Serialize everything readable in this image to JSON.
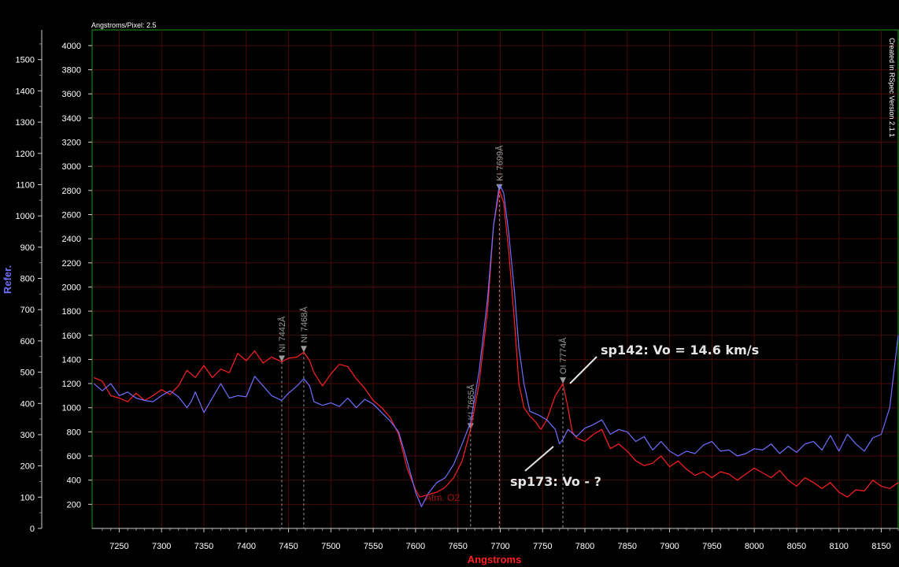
{
  "chart_data": {
    "type": "line",
    "header_left": "Angstroms/Pixel: 2.5",
    "watermark": "Created in RSpec Version 2.1.1",
    "xlabel": "Angstroms",
    "ylabel_left": "Refer.",
    "ylabel_right": "",
    "xlim": [
      7218,
      8170
    ],
    "ylim_right": [
      0,
      4130
    ],
    "ylim_left": [
      0,
      1595
    ],
    "x_ticks": [
      "7250",
      "7300",
      "7350",
      "7400",
      "7450",
      "7500",
      "7550",
      "7600",
      "7650",
      "7700",
      "7750",
      "7800",
      "7850",
      "7900",
      "7950",
      "8000",
      "8050",
      "8100",
      "8150"
    ],
    "y_ticks_right": [
      "200",
      "400",
      "600",
      "800",
      "1000",
      "1200",
      "1400",
      "1600",
      "1800",
      "2000",
      "2200",
      "2400",
      "2600",
      "2800",
      "3000",
      "3200",
      "3400",
      "3600",
      "3800",
      "4000"
    ],
    "y_ticks_left": [
      "0",
      "100",
      "200",
      "300",
      "400",
      "500",
      "600",
      "700",
      "800",
      "900",
      "1000",
      "1100",
      "1200",
      "1300",
      "1400",
      "1500"
    ],
    "grid": true,
    "series": [
      {
        "name": "",
        "color": "#ff2020",
        "points": [
          [
            7220,
            1250
          ],
          [
            7230,
            1220
          ],
          [
            7240,
            1100
          ],
          [
            7250,
            1080
          ],
          [
            7260,
            1050
          ],
          [
            7270,
            1120
          ],
          [
            7280,
            1060
          ],
          [
            7290,
            1100
          ],
          [
            7300,
            1150
          ],
          [
            7310,
            1110
          ],
          [
            7320,
            1180
          ],
          [
            7330,
            1310
          ],
          [
            7340,
            1250
          ],
          [
            7350,
            1350
          ],
          [
            7360,
            1250
          ],
          [
            7370,
            1320
          ],
          [
            7380,
            1290
          ],
          [
            7390,
            1450
          ],
          [
            7400,
            1390
          ],
          [
            7410,
            1470
          ],
          [
            7420,
            1370
          ],
          [
            7430,
            1420
          ],
          [
            7442,
            1380
          ],
          [
            7450,
            1410
          ],
          [
            7460,
            1420
          ],
          [
            7468,
            1460
          ],
          [
            7475,
            1390
          ],
          [
            7480,
            1290
          ],
          [
            7490,
            1180
          ],
          [
            7500,
            1280
          ],
          [
            7510,
            1360
          ],
          [
            7520,
            1340
          ],
          [
            7530,
            1240
          ],
          [
            7540,
            1160
          ],
          [
            7550,
            1060
          ],
          [
            7560,
            1000
          ],
          [
            7570,
            920
          ],
          [
            7580,
            780
          ],
          [
            7590,
            500
          ],
          [
            7600,
            320
          ],
          [
            7605,
            260
          ],
          [
            7615,
            280
          ],
          [
            7625,
            300
          ],
          [
            7635,
            340
          ],
          [
            7645,
            420
          ],
          [
            7655,
            560
          ],
          [
            7665,
            820
          ],
          [
            7675,
            1200
          ],
          [
            7685,
            1800
          ],
          [
            7692,
            2500
          ],
          [
            7699,
            2800
          ],
          [
            7704,
            2700
          ],
          [
            7710,
            2300
          ],
          [
            7717,
            1700
          ],
          [
            7722,
            1200
          ],
          [
            7728,
            1000
          ],
          [
            7735,
            930
          ],
          [
            7742,
            880
          ],
          [
            7748,
            820
          ],
          [
            7755,
            900
          ],
          [
            7765,
            1100
          ],
          [
            7774,
            1200
          ],
          [
            7780,
            1000
          ],
          [
            7785,
            800
          ],
          [
            7790,
            750
          ],
          [
            7800,
            720
          ],
          [
            7810,
            780
          ],
          [
            7820,
            820
          ],
          [
            7830,
            660
          ],
          [
            7840,
            700
          ],
          [
            7850,
            640
          ],
          [
            7860,
            560
          ],
          [
            7870,
            520
          ],
          [
            7880,
            540
          ],
          [
            7890,
            600
          ],
          [
            7900,
            510
          ],
          [
            7910,
            560
          ],
          [
            7920,
            490
          ],
          [
            7930,
            440
          ],
          [
            7940,
            470
          ],
          [
            7950,
            420
          ],
          [
            7960,
            470
          ],
          [
            7970,
            450
          ],
          [
            7980,
            400
          ],
          [
            7990,
            450
          ],
          [
            8000,
            500
          ],
          [
            8010,
            460
          ],
          [
            8020,
            420
          ],
          [
            8030,
            480
          ],
          [
            8040,
            400
          ],
          [
            8050,
            350
          ],
          [
            8060,
            420
          ],
          [
            8070,
            380
          ],
          [
            8080,
            330
          ],
          [
            8090,
            380
          ],
          [
            8100,
            300
          ],
          [
            8110,
            260
          ],
          [
            8120,
            320
          ],
          [
            8130,
            310
          ],
          [
            8140,
            400
          ],
          [
            8150,
            350
          ],
          [
            8160,
            330
          ],
          [
            8170,
            380
          ]
        ]
      },
      {
        "name": "",
        "color": "#6f6fff",
        "points": [
          [
            7220,
            1200
          ],
          [
            7230,
            1140
          ],
          [
            7240,
            1200
          ],
          [
            7250,
            1100
          ],
          [
            7260,
            1130
          ],
          [
            7270,
            1080
          ],
          [
            7280,
            1060
          ],
          [
            7290,
            1050
          ],
          [
            7300,
            1100
          ],
          [
            7310,
            1140
          ],
          [
            7320,
            1090
          ],
          [
            7330,
            1000
          ],
          [
            7335,
            1050
          ],
          [
            7340,
            1130
          ],
          [
            7350,
            960
          ],
          [
            7360,
            1080
          ],
          [
            7370,
            1200
          ],
          [
            7380,
            1080
          ],
          [
            7390,
            1100
          ],
          [
            7400,
            1090
          ],
          [
            7410,
            1260
          ],
          [
            7420,
            1180
          ],
          [
            7430,
            1100
          ],
          [
            7442,
            1060
          ],
          [
            7450,
            1120
          ],
          [
            7460,
            1180
          ],
          [
            7468,
            1240
          ],
          [
            7475,
            1180
          ],
          [
            7480,
            1050
          ],
          [
            7490,
            1020
          ],
          [
            7500,
            1040
          ],
          [
            7510,
            1010
          ],
          [
            7520,
            1080
          ],
          [
            7530,
            1000
          ],
          [
            7540,
            1070
          ],
          [
            7550,
            1030
          ],
          [
            7560,
            960
          ],
          [
            7570,
            890
          ],
          [
            7580,
            800
          ],
          [
            7590,
            560
          ],
          [
            7600,
            300
          ],
          [
            7607,
            180
          ],
          [
            7615,
            290
          ],
          [
            7625,
            380
          ],
          [
            7635,
            420
          ],
          [
            7645,
            530
          ],
          [
            7655,
            700
          ],
          [
            7665,
            880
          ],
          [
            7675,
            1300
          ],
          [
            7685,
            1900
          ],
          [
            7692,
            2500
          ],
          [
            7699,
            2850
          ],
          [
            7704,
            2780
          ],
          [
            7710,
            2450
          ],
          [
            7717,
            1950
          ],
          [
            7722,
            1500
          ],
          [
            7728,
            1200
          ],
          [
            7735,
            970
          ],
          [
            7745,
            940
          ],
          [
            7755,
            900
          ],
          [
            7765,
            820
          ],
          [
            7770,
            700
          ],
          [
            7774,
            740
          ],
          [
            7780,
            820
          ],
          [
            7790,
            760
          ],
          [
            7800,
            830
          ],
          [
            7810,
            860
          ],
          [
            7820,
            900
          ],
          [
            7830,
            780
          ],
          [
            7840,
            820
          ],
          [
            7850,
            800
          ],
          [
            7860,
            720
          ],
          [
            7870,
            760
          ],
          [
            7880,
            650
          ],
          [
            7890,
            720
          ],
          [
            7900,
            640
          ],
          [
            7910,
            600
          ],
          [
            7920,
            640
          ],
          [
            7930,
            620
          ],
          [
            7940,
            690
          ],
          [
            7950,
            720
          ],
          [
            7960,
            640
          ],
          [
            7970,
            650
          ],
          [
            7980,
            600
          ],
          [
            7990,
            620
          ],
          [
            8000,
            660
          ],
          [
            8010,
            650
          ],
          [
            8020,
            700
          ],
          [
            8030,
            620
          ],
          [
            8040,
            680
          ],
          [
            8050,
            630
          ],
          [
            8060,
            700
          ],
          [
            8070,
            720
          ],
          [
            8080,
            650
          ],
          [
            8090,
            770
          ],
          [
            8100,
            640
          ],
          [
            8110,
            780
          ],
          [
            8120,
            700
          ],
          [
            8130,
            640
          ],
          [
            8140,
            750
          ],
          [
            8150,
            780
          ],
          [
            8160,
            1000
          ],
          [
            8170,
            1600
          ]
        ]
      }
    ],
    "markers": [
      {
        "x": 7442,
        "label": "NI 7442Å",
        "color": "#ff4040"
      },
      {
        "x": 7468,
        "label": "NI 7468Å",
        "color": "#ff4040"
      },
      {
        "x": 7665,
        "label": "KI 7665Å",
        "color": "#ff4040"
      },
      {
        "x": 7699,
        "label": "KI 7699Å",
        "color": "#ff4040"
      },
      {
        "x": 7774,
        "label": "OI 7774Å",
        "color": "#ff4040"
      }
    ],
    "annotations": [
      {
        "text": "sp142: Vo = 14.6 km/s"
      },
      {
        "text": "sp173: Vo - ?"
      },
      {
        "text": "Atm. O2"
      }
    ]
  }
}
